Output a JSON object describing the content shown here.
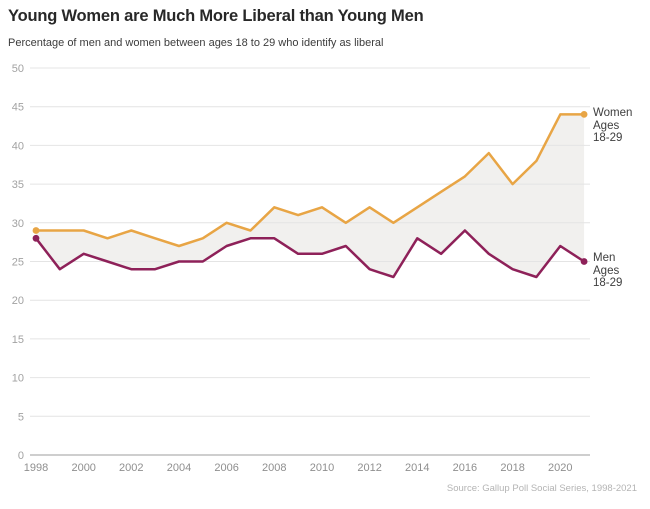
{
  "header": {
    "title": "Young Women are Much More Liberal than Young Men",
    "subtitle": "Percentage of men and women between ages 18 to 29 who identify as liberal"
  },
  "chart_data": {
    "type": "line",
    "x": [
      1998,
      1999,
      2000,
      2001,
      2002,
      2003,
      2004,
      2005,
      2006,
      2007,
      2008,
      2009,
      2010,
      2011,
      2012,
      2013,
      2014,
      2015,
      2016,
      2017,
      2018,
      2019,
      2020,
      2021
    ],
    "series": [
      {
        "name": "Women Ages 18-29",
        "label_lines": [
          "Women",
          "Ages",
          "18-29"
        ],
        "color": "#E8A545",
        "values": [
          29,
          29,
          29,
          28,
          29,
          28,
          27,
          28,
          30,
          29,
          32,
          31,
          32,
          30,
          32,
          30,
          32,
          34,
          36,
          39,
          35,
          38,
          44,
          44
        ]
      },
      {
        "name": "Men Ages 18-29",
        "label_lines": [
          "Men",
          "Ages",
          "18-29"
        ],
        "color": "#8E2159",
        "values": [
          28,
          24,
          26,
          25,
          24,
          24,
          25,
          25,
          27,
          28,
          28,
          26,
          26,
          27,
          24,
          23,
          28,
          26,
          29,
          26,
          24,
          23,
          27,
          25
        ]
      }
    ],
    "ylim": [
      0,
      50
    ],
    "yticks": [
      0,
      5,
      10,
      15,
      20,
      25,
      30,
      35,
      40,
      45,
      50
    ],
    "xticks": [
      1998,
      2000,
      2002,
      2004,
      2006,
      2008,
      2010,
      2012,
      2014,
      2016,
      2018,
      2020
    ],
    "grid": true,
    "fill_between": true,
    "fill_color": "#F1F0EE",
    "gridline_color": "#E4E4E4",
    "axisline_color": "#9C9C9C",
    "ytick_color": "#A2A2A2",
    "xtick_color": "#8F8F8F",
    "legend_position": "right-of-line-end"
  },
  "footer": {
    "source": "Source: Gallup Poll Social Series, 1998-2021"
  }
}
